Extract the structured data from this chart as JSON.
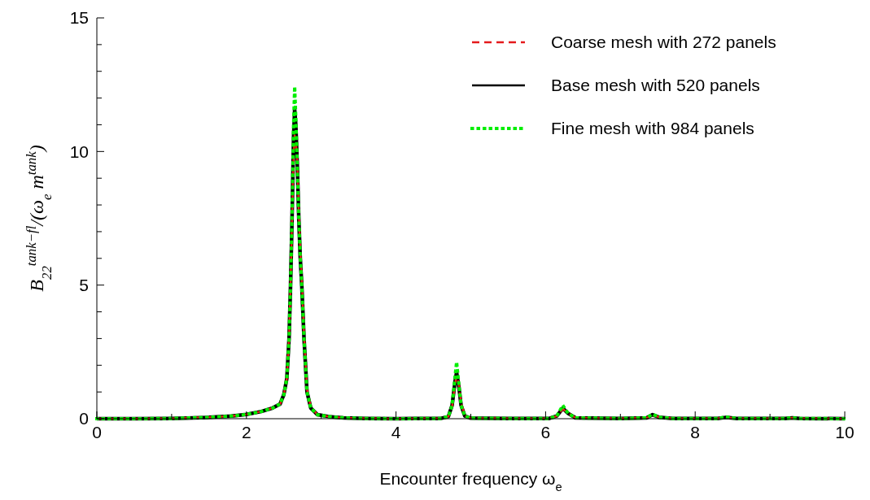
{
  "chart_data": {
    "type": "line",
    "xlabel": "Encounter frequency ω$_{e}$",
    "ylabel": "B$_{22}$$^{tank−fl}$/(ω$_{e}$ m$^{tank}$)",
    "xlim": [
      0,
      10
    ],
    "ylim": [
      0,
      15
    ],
    "xticks": [
      0,
      {
        "value": 1,
        "label": null
      },
      2,
      {
        "value": 3,
        "label": null
      },
      4,
      {
        "value": 5,
        "label": null
      },
      6,
      {
        "value": 7,
        "label": null
      },
      8,
      {
        "value": 9,
        "label": null
      },
      10
    ],
    "yticks": [
      0,
      {
        "value": 1,
        "label": null
      },
      {
        "value": 2,
        "label": null
      },
      {
        "value": 3,
        "label": null
      },
      {
        "value": 4,
        "label": null
      },
      5,
      {
        "value": 6,
        "label": null
      },
      {
        "value": 7,
        "label": null
      },
      {
        "value": 8,
        "label": null
      },
      {
        "value": 9,
        "label": null
      },
      10,
      {
        "value": 11,
        "label": null
      },
      {
        "value": 12,
        "label": null
      },
      {
        "value": 13,
        "label": null
      },
      {
        "value": 14,
        "label": null
      },
      15
    ],
    "grid": false,
    "legend": "top right",
    "marker": "none",
    "x": [
      0,
      0.5,
      1,
      1.5,
      1.8,
      2,
      2.2,
      2.35,
      2.45,
      2.5,
      2.54,
      2.57,
      2.59,
      2.61,
      2.63,
      2.645,
      2.66,
      2.68,
      2.7,
      2.72,
      2.74,
      2.77,
      2.81,
      2.86,
      2.95,
      3.1,
      3.3,
      3.6,
      4,
      4.6,
      4.7,
      4.75,
      4.79,
      4.81,
      4.84,
      4.87,
      4.92,
      5,
      5.5,
      6.05,
      6.15,
      6.23,
      6.3,
      6.4,
      7,
      7.35,
      7.43,
      7.52,
      7.7,
      8.3,
      8.41,
      8.55,
      9.2,
      9.3,
      9.4,
      10
    ],
    "series": [
      {
        "name": "Coarse mesh with 272 panels",
        "color": "#e41a1c",
        "line_style": "dashed",
        "values": [
          0,
          0,
          0.01,
          0.05,
          0.1,
          0.16,
          0.27,
          0.4,
          0.55,
          0.9,
          1.5,
          3,
          5,
          7.5,
          9.8,
          10.6,
          10.4,
          9.6,
          7.8,
          6.3,
          5.2,
          3.2,
          1.1,
          0.45,
          0.15,
          0.08,
          0.03,
          0.01,
          0,
          0.01,
          0.08,
          0.45,
          1.3,
          1.6,
          1.3,
          0.6,
          0.12,
          0.02,
          0.01,
          0.01,
          0.1,
          0.36,
          0.22,
          0.03,
          0.01,
          0.03,
          0.13,
          0.06,
          0.01,
          0.01,
          0.05,
          0.01,
          0.01,
          0.03,
          0.01,
          0
        ]
      },
      {
        "name": "Base mesh with 520 panels",
        "color": "#000000",
        "line_style": "solid",
        "values": [
          0,
          0,
          0.01,
          0.05,
          0.1,
          0.16,
          0.27,
          0.4,
          0.55,
          0.9,
          1.5,
          3,
          5,
          7.5,
          10.5,
          11.56,
          11,
          9.5,
          7.5,
          6,
          5,
          3,
          1,
          0.4,
          0.15,
          0.08,
          0.03,
          0.01,
          0,
          0.01,
          0.08,
          0.5,
          1.4,
          1.73,
          1.2,
          0.5,
          0.1,
          0.02,
          0.01,
          0.01,
          0.1,
          0.39,
          0.2,
          0.03,
          0.01,
          0.03,
          0.15,
          0.05,
          0.01,
          0.01,
          0.05,
          0.01,
          0.01,
          0.03,
          0.01,
          0
        ]
      },
      {
        "name": "Fine mesh with 984 panels",
        "color": "#00ee00",
        "line_style": "dotted",
        "values": [
          0,
          0,
          0.01,
          0.05,
          0.1,
          0.16,
          0.27,
          0.4,
          0.55,
          0.9,
          1.5,
          3,
          5,
          7.6,
          11,
          12.43,
          11.3,
          9.5,
          7.5,
          6,
          5,
          3,
          1,
          0.4,
          0.15,
          0.08,
          0.03,
          0.01,
          0,
          0.01,
          0.08,
          0.5,
          1.6,
          2.12,
          1.3,
          0.5,
          0.1,
          0.02,
          0.01,
          0.01,
          0.1,
          0.5,
          0.2,
          0.03,
          0.01,
          0.03,
          0.17,
          0.05,
          0.01,
          0.01,
          0.06,
          0.01,
          0.01,
          0.03,
          0.01,
          0
        ]
      }
    ]
  }
}
